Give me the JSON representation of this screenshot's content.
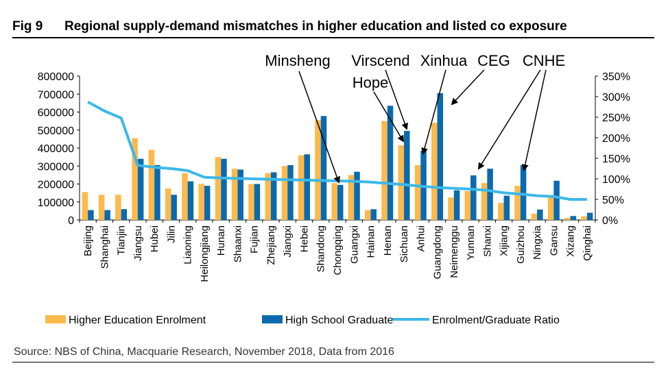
{
  "figure": {
    "number": "Fig 9",
    "title": "Regional supply-demand mismatches in higher education and listed co exposure",
    "source": "Source: NBS of China, Macquarie Research, November 2018, Data from 2016"
  },
  "colors": {
    "enrolment": "#FDB94A",
    "graduate": "#0B6AAE",
    "ratio": "#3DB8E8"
  },
  "chart_data": {
    "type": "bar",
    "categories": [
      "Beijing",
      "Shanghai",
      "Tianjin",
      "Jiangsu",
      "Hubei",
      "Jilin",
      "Liaoning",
      "Heilongjiang",
      "Hunan",
      "Shaanxi",
      "Fujian",
      "Zhejiang",
      "Jiangxi",
      "Hebei",
      "Shandong",
      "Chongqing",
      "Guangxi",
      "Hainan",
      "Henan",
      "Sichuan",
      "Anhui",
      "Guangdong",
      "Neimenggu",
      "Yunnan",
      "Shanxi",
      "Xijiang",
      "Guizhou",
      "Ningxia",
      "Gansu",
      "Xizang",
      "Qinghai"
    ],
    "series": [
      {
        "name": "Higher Education Enrolment",
        "type": "bar",
        "axis": "left",
        "values": [
          155000,
          140000,
          140000,
          455000,
          390000,
          175000,
          260000,
          200000,
          350000,
          285000,
          200000,
          260000,
          300000,
          360000,
          555000,
          205000,
          250000,
          55000,
          550000,
          415000,
          305000,
          540000,
          125000,
          160000,
          205000,
          95000,
          190000,
          35000,
          130000,
          12000,
          20000
        ]
      },
      {
        "name": "High School Graduate",
        "type": "bar",
        "axis": "left",
        "values": [
          55000,
          55000,
          60000,
          340000,
          305000,
          140000,
          215000,
          190000,
          340000,
          280000,
          200000,
          265000,
          305000,
          365000,
          578000,
          195000,
          268000,
          60000,
          635000,
          495000,
          385000,
          705000,
          165000,
          248000,
          285000,
          135000,
          305000,
          58000,
          218000,
          22000,
          40000
        ]
      },
      {
        "name": "Enrolment/Graduate Ratio",
        "type": "line",
        "axis": "right",
        "values": [
          287,
          265,
          248,
          133,
          128,
          125,
          120,
          104,
          102,
          101,
          100,
          99,
          98,
          97,
          96,
          95,
          94,
          92,
          89,
          86,
          82,
          79,
          77,
          75,
          72,
          66,
          63,
          59,
          57,
          50,
          50
        ]
      }
    ],
    "y_left": {
      "ylim": [
        0,
        800000
      ],
      "ticks": [
        "0",
        "100000",
        "200000",
        "300000",
        "400000",
        "500000",
        "600000",
        "700000",
        "800000"
      ]
    },
    "y_right": {
      "ylim": [
        0,
        350
      ],
      "ticks": [
        "0%",
        "50%",
        "100%",
        "150%",
        "200%",
        "250%",
        "300%",
        "350%"
      ]
    },
    "legend": {
      "placement": "bottom",
      "items": [
        "Higher Education Enrolment",
        "High School Graduate",
        "Enrolment/Graduate Ratio"
      ]
    },
    "annotations": [
      {
        "label": "Minsheng",
        "targets": [
          "Chongqing"
        ]
      },
      {
        "label": "Virscend",
        "targets": [
          "Sichuan"
        ]
      },
      {
        "label": "Hope",
        "targets": [
          "Sichuan"
        ]
      },
      {
        "label": "Xinhua",
        "targets": [
          "Anhui"
        ]
      },
      {
        "label": "CEG",
        "targets": [
          "Guangdong"
        ]
      },
      {
        "label": "CNHE",
        "targets": [
          "Yunnan",
          "Guizhou"
        ]
      }
    ]
  }
}
